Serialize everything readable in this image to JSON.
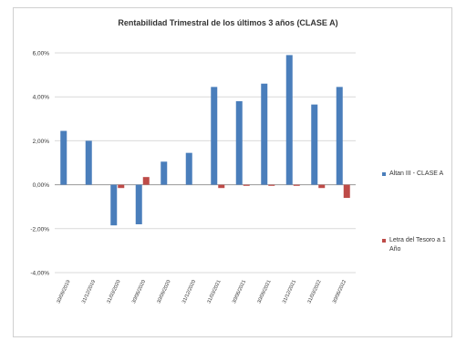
{
  "chart_data": {
    "type": "bar",
    "title": "Rentabilidad Trimestral de los últimos 3 años (CLASE A)",
    "xlabel": "",
    "ylabel": "",
    "categories": [
      "30/09/2019",
      "31/12/2019",
      "31/03/2020",
      "30/06/2020",
      "30/09/2020",
      "31/12/2020",
      "31/03/2021",
      "30/06/2021",
      "30/09/2021",
      "31/12/2021",
      "31/03/2022",
      "30/06/2022"
    ],
    "series": [
      {
        "name": "Altan III - CLASE A",
        "color": "#4a7ebb",
        "values": [
          2.45,
          2.0,
          -1.85,
          -1.8,
          1.05,
          1.45,
          4.45,
          3.8,
          4.6,
          5.9,
          3.65,
          4.45
        ]
      },
      {
        "name": "Letra del Tesoro a 1 Año",
        "color": "#be4b48",
        "values": [
          0.0,
          0.0,
          -0.15,
          0.35,
          0.0,
          0.0,
          -0.15,
          -0.05,
          -0.05,
          -0.05,
          -0.15,
          -0.6
        ]
      }
    ],
    "ylim": [
      -4,
      6
    ],
    "yticks": [
      -4,
      -2,
      0,
      2,
      4,
      6
    ],
    "ytick_labels": [
      "-4,00%",
      "-2,00%",
      "0,00%",
      "2,00%",
      "4,00%",
      "6,00%"
    ],
    "grid": true,
    "legend_position": "right"
  }
}
